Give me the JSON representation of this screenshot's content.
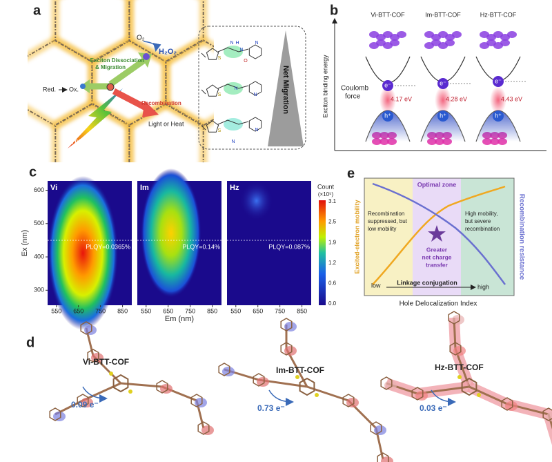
{
  "panels": {
    "a": {
      "label": "a",
      "o2": "O₂",
      "h2o2": "H₂O₂",
      "dissociation": "Exciton Dissociation",
      "migration": "& Migration",
      "red": "Red.",
      "ox": "Ox.",
      "recombination": "Recombination",
      "light_heat": "Light or Heat",
      "hv": "hv",
      "net_migration": "Net Migration",
      "molecules": [
        {
          "atoms": [
            "S",
            "N",
            "H",
            "N",
            "O",
            "N"
          ]
        },
        {
          "atoms": [
            "S",
            "N",
            "N"
          ]
        },
        {
          "atoms": [
            "S",
            "N",
            "N"
          ]
        }
      ]
    },
    "b": {
      "label": "b",
      "y_axis": "Exciton binding energy",
      "coulomb_1": "Coulomb",
      "coulomb_2": "force",
      "cofs": [
        {
          "name": "Vi-BTT-COF",
          "energy": "4.17 eV",
          "electron": "e⁻",
          "hole": "h⁺"
        },
        {
          "name": "Im-BTT-COF",
          "energy": "4.28 eV",
          "electron": "e⁻",
          "hole": "h⁺"
        },
        {
          "name": "Hz-BTT-COF",
          "energy": "4.43 eV",
          "electron": "e⁻",
          "hole": "h⁺"
        }
      ]
    },
    "c": {
      "label": "c",
      "y_axis": "Ex (nm)",
      "x_axis": "Em (nm)",
      "yticks": [
        600,
        500,
        400,
        300
      ],
      "xticks": [
        550,
        650,
        750,
        850
      ],
      "maps": [
        {
          "name": "Vi",
          "plqy": "PLQY=0.0365%"
        },
        {
          "name": "Im",
          "plqy": "PLQY=0.14%"
        },
        {
          "name": "Hz",
          "plqy": "PLQY=0.087%"
        }
      ],
      "colorbar": {
        "title": "Count",
        "unit": "(×10⁵)",
        "ticks": [
          "3.1",
          "2.5",
          "1.9",
          "1.2",
          "0.6",
          "0.0"
        ]
      }
    },
    "e": {
      "label": "e",
      "optimal": "Optimal zone",
      "left_1": "Recombination",
      "left_2": "suppressed, but",
      "left_3": "low mobility",
      "right_1": "High mobility,",
      "right_2": "but severe",
      "right_3": "recombination",
      "center_1": "Greater",
      "center_2": "net charge",
      "center_3": "transfer",
      "left_axis": "Excited-electron mobility",
      "right_axis": "Recombination resistance",
      "low": "low",
      "conjugation": "Linkage conjugation",
      "high": "high",
      "x_axis": "Hole Delocalization Index"
    },
    "d": {
      "label": "d",
      "structures": [
        {
          "name": "Vi-BTT-COF",
          "charge": "0.09 e⁻"
        },
        {
          "name": "Im-BTT-COF",
          "charge": "0.73 e⁻"
        },
        {
          "name": "Hz-BTT-COF",
          "charge": "0.03 e⁻"
        }
      ]
    }
  }
}
